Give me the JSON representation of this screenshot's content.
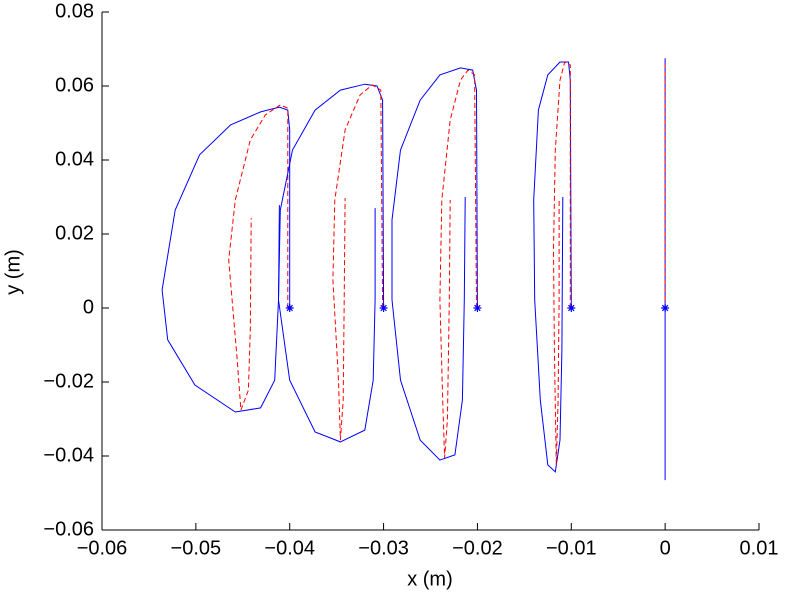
{
  "chart_data": {
    "type": "line",
    "xlabel": "x (m)",
    "ylabel": "y (m)",
    "xlim": [
      -0.06,
      0.01
    ],
    "ylim": [
      -0.06,
      0.08
    ],
    "xticks": [
      {
        "value": -0.06,
        "label": "−0.06"
      },
      {
        "value": -0.05,
        "label": "−0.05"
      },
      {
        "value": -0.04,
        "label": "−0.04"
      },
      {
        "value": -0.03,
        "label": "−0.03"
      },
      {
        "value": -0.02,
        "label": "−0.02"
      },
      {
        "value": -0.01,
        "label": "−0.01"
      },
      0,
      0.01
    ],
    "yticks": [
      {
        "value": -0.06,
        "label": "−0.06"
      },
      {
        "value": -0.04,
        "label": "−0.04"
      },
      {
        "value": -0.02,
        "label": "−0.02"
      },
      0,
      0.02,
      0.04,
      0.06,
      0.08
    ],
    "grid": false,
    "series": [
      {
        "color": "#0000ff",
        "style": "solid",
        "x": [
          -0.04,
          -0.04,
          -0.0402,
          -0.0411,
          -0.0431,
          -0.0463,
          -0.0496,
          -0.0522,
          -0.0536,
          -0.053,
          -0.0501,
          -0.0458,
          -0.0431,
          -0.0416,
          -0.0412,
          -0.0411
        ],
        "values": [
          0,
          0.0481,
          0.0535,
          0.0543,
          0.053,
          0.0495,
          0.0414,
          0.0265,
          0.0049,
          -0.0086,
          -0.0208,
          -0.0281,
          -0.027,
          -0.0195,
          0.0022,
          0.0278
        ]
      },
      {
        "color": "#ff0000",
        "style": "dashed",
        "x": [
          -0.0402,
          -0.0402,
          -0.041,
          -0.0426,
          -0.0442,
          -0.0458,
          -0.0465,
          -0.0456,
          -0.0452,
          -0.0444,
          -0.0442,
          -0.0441
        ],
        "values": [
          0,
          0.054,
          0.0549,
          0.0522,
          0.0454,
          0.0292,
          0.013,
          -0.014,
          -0.0276,
          -0.0222,
          -0.006,
          0.0243
        ]
      },
      {
        "color": "#0000ff",
        "style": "solid",
        "x": [
          -0.03,
          -0.0301,
          -0.0307,
          -0.032,
          -0.0346,
          -0.0373,
          -0.0397,
          -0.041,
          -0.0412,
          -0.04,
          -0.0373,
          -0.0346,
          -0.032,
          -0.0311,
          -0.0309,
          -0.0309
        ],
        "values": [
          0,
          0.0562,
          0.06,
          0.0605,
          0.0589,
          0.0535,
          0.0427,
          0.0265,
          0.0022,
          -0.0195,
          -0.0335,
          -0.0362,
          -0.033,
          -0.0195,
          0.0022,
          0.027
        ]
      },
      {
        "color": "#ff0000",
        "style": "dashed",
        "x": [
          -0.0301,
          -0.0303,
          -0.0312,
          -0.0325,
          -0.0341,
          -0.0352,
          -0.0354,
          -0.0348,
          -0.0346,
          -0.0343,
          -0.0342,
          -0.0341
        ],
        "values": [
          0,
          0.0589,
          0.0603,
          0.0576,
          0.0481,
          0.0292,
          0.0076,
          -0.0195,
          -0.0357,
          -0.0249,
          0.0022,
          0.0297
        ]
      },
      {
        "color": "#0000ff",
        "style": "solid",
        "x": [
          -0.02,
          -0.0201,
          -0.0205,
          -0.0218,
          -0.024,
          -0.0261,
          -0.0282,
          -0.0291,
          -0.0291,
          -0.0282,
          -0.0261,
          -0.024,
          -0.0224,
          -0.0216,
          -0.0214,
          -0.0213
        ],
        "values": [
          0,
          0.0589,
          0.0643,
          0.0649,
          0.063,
          0.0562,
          0.0427,
          0.0238,
          0.0022,
          -0.0195,
          -0.0357,
          -0.0411,
          -0.0397,
          -0.0249,
          0.0022,
          0.03
        ]
      },
      {
        "color": "#ff0000",
        "style": "dashed",
        "x": [
          -0.0201,
          -0.0203,
          -0.021,
          -0.0218,
          -0.0229,
          -0.0238,
          -0.024,
          -0.0237,
          -0.0235,
          -0.0232,
          -0.023,
          -0.0229
        ],
        "values": [
          0,
          0.063,
          0.0643,
          0.0616,
          0.0508,
          0.0292,
          0.0022,
          -0.0249,
          -0.0405,
          -0.0303,
          0.0022,
          0.0292
        ]
      },
      {
        "color": "#0000ff",
        "style": "solid",
        "x": [
          -0.01,
          -0.0101,
          -0.0103,
          -0.0112,
          -0.0125,
          -0.0135,
          -0.014,
          -0.0139,
          -0.0133,
          -0.0125,
          -0.0117,
          -0.0112,
          -0.011,
          -0.0109
        ],
        "values": [
          0,
          0.0616,
          0.0665,
          0.0665,
          0.063,
          0.0535,
          0.0292,
          0.0022,
          -0.0249,
          -0.0424,
          -0.0443,
          -0.0357,
          -0.0114,
          0.03
        ]
      },
      {
        "color": "#ff0000",
        "style": "dashed",
        "x": [
          -0.0101,
          -0.0101,
          -0.0107,
          -0.0112,
          -0.0117,
          -0.0119,
          -0.0118,
          -0.0116,
          -0.0114,
          -0.0113,
          -0.0113
        ],
        "values": [
          0,
          0.0657,
          0.0665,
          0.0616,
          0.0427,
          0.0157,
          -0.0114,
          -0.0424,
          -0.0249,
          0.0022,
          0.0292
        ]
      },
      {
        "color": "#0000ff",
        "style": "solid",
        "x": [
          0,
          0,
          0
        ],
        "values": [
          0,
          0.0675,
          -0.0465
        ]
      },
      {
        "color": "#ff0000",
        "style": "dashed",
        "x": [
          0,
          0
        ],
        "values": [
          0,
          0.066
        ]
      },
      {
        "color": "#0000ff",
        "style": "marker",
        "x": [
          -0.04,
          -0.03,
          -0.02,
          -0.01,
          0
        ],
        "values": [
          0,
          0,
          0,
          0,
          0
        ]
      }
    ]
  }
}
